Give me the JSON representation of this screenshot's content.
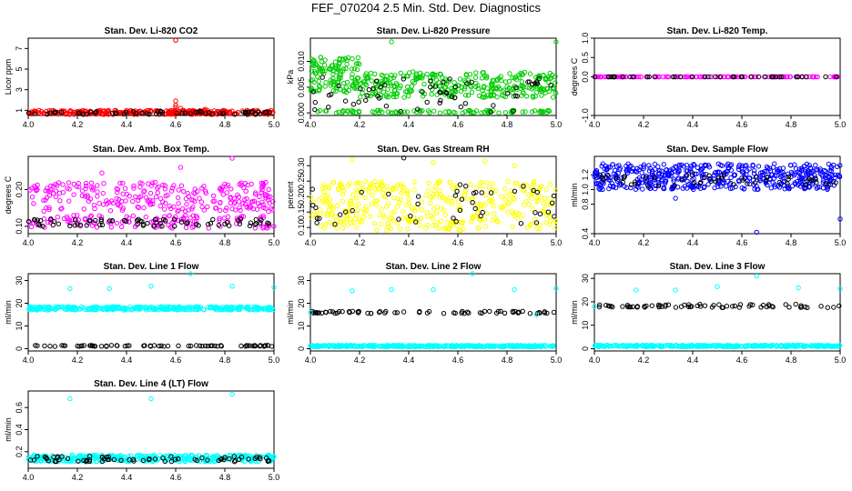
{
  "figure_title": "FEF_070204  2.5 Min. Std. Dev. Diagnostics",
  "chart_data": [
    {
      "type": "scatter",
      "title": "Stan. Dev. Li-820 CO2",
      "ylabel": "Licor ppm",
      "xlim": [
        4.0,
        5.0
      ],
      "ylim": [
        0.5,
        8.0
      ],
      "xticks": [
        "4.0",
        "4.2",
        "4.4",
        "4.6",
        "4.8",
        "5.0"
      ],
      "yticks": [
        "1",
        "3",
        "5",
        "7"
      ],
      "colors": {
        "primary": "#ff0000",
        "secondary": "#000000"
      },
      "series": [
        {
          "style": "band",
          "color": "#ff0000",
          "x": [
            4.0,
            5.0
          ],
          "band": [
            0.6,
            1.0
          ],
          "n": 300
        },
        {
          "style": "band",
          "color": "#000000",
          "x": [
            4.0,
            5.0
          ],
          "band": [
            0.6,
            0.9
          ],
          "n": 60
        },
        {
          "style": "points",
          "color": "#ff0000",
          "x": [
            4.6,
            4.6,
            4.6,
            4.62,
            4.6,
            4.6,
            4.72
          ],
          "y": [
            7.8,
            1.9,
            1.5,
            1.2,
            1.3,
            1.0,
            1.1
          ]
        }
      ]
    },
    {
      "type": "scatter",
      "title": "Stan. Dev. Li-820 Pressure",
      "ylabel": "kPa",
      "xlim": [
        4.0,
        5.0
      ],
      "ylim": [
        -0.0005,
        0.0145
      ],
      "xticks": [
        "4.0",
        "4.2",
        "4.4",
        "4.6",
        "4.8",
        "5.0"
      ],
      "yticks": [
        "0.000",
        "0.005",
        "0.010"
      ],
      "colors": {
        "primary": "#00cc00",
        "secondary": "#000000"
      },
      "series": [
        {
          "style": "band",
          "color": "#00cc00",
          "x": [
            4.0,
            4.2
          ],
          "band": [
            0.004,
            0.011
          ],
          "n": 120
        },
        {
          "style": "band",
          "color": "#00cc00",
          "x": [
            4.2,
            5.0
          ],
          "band": [
            0.003,
            0.008
          ],
          "n": 300
        },
        {
          "style": "band",
          "color": "#00cc00",
          "x": [
            4.0,
            5.0
          ],
          "band": [
            0.0,
            0.0005
          ],
          "n": 90
        },
        {
          "style": "band",
          "color": "#000000",
          "x": [
            4.0,
            5.0
          ],
          "band": [
            0.0,
            0.007
          ],
          "n": 60
        },
        {
          "style": "points",
          "color": "#00cc00",
          "x": [
            4.33,
            5.0,
            4.17
          ],
          "y": [
            0.0138,
            0.0138,
            0.0105
          ]
        }
      ]
    },
    {
      "type": "scatter",
      "title": "Stan. Dev. Li-820 Temp.",
      "ylabel": "degrees C",
      "xlim": [
        4.0,
        5.0
      ],
      "ylim": [
        -1.0,
        1.0
      ],
      "xticks": [
        "4.0",
        "4.2",
        "4.4",
        "4.6",
        "4.8",
        "5.0"
      ],
      "yticks": [
        "-1.0",
        "0.0",
        "0.5",
        "1.0"
      ],
      "colors": {
        "primary": "#ff00ff",
        "secondary": "#000000"
      },
      "series": [
        {
          "style": "band",
          "color": "#ff00ff",
          "x": [
            4.0,
            5.0
          ],
          "band": [
            0.0,
            0.0
          ],
          "n": 120
        },
        {
          "style": "band",
          "color": "#000000",
          "x": [
            4.0,
            5.0
          ],
          "band": [
            0.0,
            0.0
          ],
          "n": 40
        }
      ]
    },
    {
      "type": "scatter",
      "title": "Stan. Dev. Amb. Box Temp.",
      "ylabel": "degrees C",
      "xlim": [
        4.0,
        5.0
      ],
      "ylim": [
        0.08,
        0.29
      ],
      "xticks": [
        "4.0",
        "4.2",
        "4.4",
        "4.6",
        "4.8",
        "5.0"
      ],
      "yticks": [
        "0.10",
        "0.20"
      ],
      "colors": {
        "primary": "#ff00ff",
        "secondary": "#000000"
      },
      "series": [
        {
          "style": "band",
          "color": "#ff00ff",
          "x": [
            4.0,
            5.0
          ],
          "band": [
            0.14,
            0.22
          ],
          "n": 260
        },
        {
          "style": "band",
          "color": "#ff00ff",
          "x": [
            4.0,
            5.0
          ],
          "band": [
            0.095,
            0.13
          ],
          "n": 120
        },
        {
          "style": "band",
          "color": "#000000",
          "x": [
            4.0,
            5.0
          ],
          "band": [
            0.1,
            0.12
          ],
          "n": 70
        },
        {
          "style": "points",
          "color": "#ff00ff",
          "x": [
            4.83,
            4.62,
            4.3
          ],
          "y": [
            0.285,
            0.26,
            0.245
          ]
        }
      ]
    },
    {
      "type": "scatter",
      "title": "Stan. Dev. Gas Stream RH",
      "ylabel": "percent",
      "xlim": [
        4.0,
        5.0
      ],
      "ylim": [
        0.08,
        0.33
      ],
      "xticks": [
        "4.0",
        "4.2",
        "4.4",
        "4.6",
        "4.8",
        "5.0"
      ],
      "yticks": [
        "0.10",
        "0.15",
        "0.20",
        "0.25",
        "0.30"
      ],
      "colors": {
        "primary": "#ffff00",
        "secondary": "#000000"
      },
      "series": [
        {
          "style": "band",
          "color": "#ffff00",
          "x": [
            4.0,
            5.0
          ],
          "band": [
            0.09,
            0.25
          ],
          "n": 400
        },
        {
          "style": "band",
          "color": "#000000",
          "x": [
            4.0,
            5.0
          ],
          "band": [
            0.11,
            0.24
          ],
          "n": 45
        },
        {
          "style": "points",
          "color": "#ffff00",
          "x": [
            4.17,
            4.5,
            4.71,
            4.83
          ],
          "y": [
            0.32,
            0.31,
            0.315,
            0.3
          ]
        },
        {
          "style": "points",
          "color": "#000000",
          "x": [
            4.38
          ],
          "y": [
            0.325
          ]
        }
      ]
    },
    {
      "type": "scatter",
      "title": "Stan. Dev. Sample Flow",
      "ylabel": "ml/min",
      "xlim": [
        4.0,
        5.0
      ],
      "ylim": [
        0.4,
        1.45
      ],
      "xticks": [
        "4.0",
        "4.2",
        "4.4",
        "4.6",
        "4.8",
        "5.0"
      ],
      "yticks": [
        "0.4",
        "0.8",
        "1.0",
        "1.2"
      ],
      "colors": {
        "primary": "#0000ff",
        "secondary": "#000000"
      },
      "series": [
        {
          "style": "band",
          "color": "#0000ff",
          "x": [
            4.0,
            5.0
          ],
          "band": [
            1.0,
            1.35
          ],
          "n": 500
        },
        {
          "style": "band",
          "color": "#000000",
          "x": [
            4.0,
            5.0
          ],
          "band": [
            1.05,
            1.2
          ],
          "n": 50
        },
        {
          "style": "points",
          "color": "#0000ff",
          "x": [
            4.66,
            5.0,
            4.33
          ],
          "y": [
            0.42,
            0.6,
            0.88
          ]
        }
      ]
    },
    {
      "type": "scatter",
      "title": "Stan. Dev. Line 1 Flow",
      "ylabel": "ml/min",
      "xlim": [
        4.0,
        5.0
      ],
      "ylim": [
        -1,
        33
      ],
      "xticks": [
        "4.0",
        "4.2",
        "4.4",
        "4.6",
        "4.8",
        "5.0"
      ],
      "yticks": [
        "0",
        "10",
        "20",
        "30"
      ],
      "colors": {
        "primary": "#00ffff",
        "secondary": "#000000"
      },
      "series": [
        {
          "style": "band",
          "color": "#00ffff",
          "x": [
            4.0,
            5.0
          ],
          "band": [
            17.0,
            18.5
          ],
          "n": 350
        },
        {
          "style": "band",
          "color": "#000000",
          "x": [
            4.0,
            5.0
          ],
          "band": [
            1.0,
            1.5
          ],
          "n": 70
        },
        {
          "style": "points",
          "color": "#00ffff",
          "x": [
            4.17,
            4.33,
            4.5,
            4.66,
            4.83,
            5.0
          ],
          "y": [
            26.5,
            26.5,
            27.5,
            33,
            27.5,
            27
          ]
        }
      ]
    },
    {
      "type": "scatter",
      "title": "Stan. Dev. Line 2 Flow",
      "ylabel": "ml/min",
      "xlim": [
        4.0,
        5.0
      ],
      "ylim": [
        -1,
        33
      ],
      "xticks": [
        "4.0",
        "4.2",
        "4.4",
        "4.6",
        "4.8",
        "5.0"
      ],
      "yticks": [
        "0",
        "10",
        "20",
        "30"
      ],
      "colors": {
        "primary": "#00ffff",
        "secondary": "#000000"
      },
      "series": [
        {
          "style": "band",
          "color": "#000000",
          "x": [
            4.0,
            5.0
          ],
          "band": [
            15.5,
            16.5
          ],
          "n": 70
        },
        {
          "style": "band",
          "color": "#00ffff",
          "x": [
            4.0,
            5.0
          ],
          "band": [
            0.8,
            1.5
          ],
          "n": 350
        },
        {
          "style": "points",
          "color": "#00ffff",
          "x": [
            4.0,
            4.17,
            4.33,
            4.5,
            4.66,
            4.83,
            5.0,
            4.92
          ],
          "y": [
            16,
            25.5,
            26,
            26,
            33,
            26,
            26.5,
            15
          ]
        }
      ]
    },
    {
      "type": "scatter",
      "title": "Stan. Dev. Line 3 Flow",
      "ylabel": "ml/min",
      "xlim": [
        4.0,
        5.0
      ],
      "ylim": [
        -1,
        32
      ],
      "xticks": [
        "4.0",
        "4.2",
        "4.4",
        "4.6",
        "4.8",
        "5.0"
      ],
      "yticks": [
        "0",
        "10",
        "20",
        "30"
      ],
      "colors": {
        "primary": "#00ffff",
        "secondary": "#000000"
      },
      "series": [
        {
          "style": "band",
          "color": "#000000",
          "x": [
            4.0,
            5.0
          ],
          "band": [
            17.5,
            19.0
          ],
          "n": 70
        },
        {
          "style": "band",
          "color": "#00ffff",
          "x": [
            4.0,
            5.0
          ],
          "band": [
            0.8,
            1.5
          ],
          "n": 350
        },
        {
          "style": "points",
          "color": "#00ffff",
          "x": [
            4.17,
            4.33,
            4.5,
            4.66,
            4.83,
            5.0,
            4.0
          ],
          "y": [
            25,
            25,
            26.5,
            31,
            26,
            25.5,
            18
          ]
        }
      ]
    },
    {
      "type": "scatter",
      "title": "Stan. Dev. Line 4 (LT) Flow",
      "ylabel": "ml/min",
      "xlim": [
        4.0,
        5.0
      ],
      "ylim": [
        0.05,
        0.75
      ],
      "xticks": [
        "4.0",
        "4.2",
        "4.4",
        "4.6",
        "4.8",
        "5.0"
      ],
      "yticks": [
        "0.2",
        "0.4",
        "0.6"
      ],
      "colors": {
        "primary": "#00ffff",
        "secondary": "#000000"
      },
      "series": [
        {
          "style": "band",
          "color": "#00ffff",
          "x": [
            4.0,
            5.0
          ],
          "band": [
            0.11,
            0.17
          ],
          "n": 350
        },
        {
          "style": "band",
          "color": "#000000",
          "x": [
            4.0,
            5.0
          ],
          "band": [
            0.11,
            0.16
          ],
          "n": 70
        },
        {
          "style": "points",
          "color": "#00ffff",
          "x": [
            4.17,
            4.5,
            4.83
          ],
          "y": [
            0.68,
            0.68,
            0.72
          ]
        }
      ]
    }
  ]
}
